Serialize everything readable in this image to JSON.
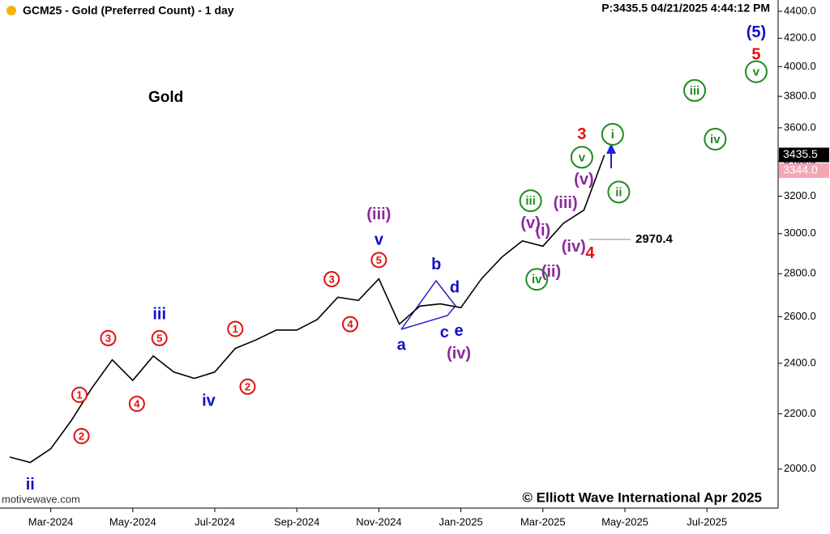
{
  "chart_data": {
    "type": "line",
    "title": "GCM25 - Gold (Preferred Count) - 1 day",
    "info": "P:3435.5  04/21/2025 4:44:12 PM",
    "subtitle": "Gold",
    "source": "motivewave.com",
    "copyright": "© Elliott Wave International Apr 2025",
    "log_scale": true,
    "grid": false,
    "categories": [
      null,
      null,
      "Mar-2024",
      null,
      null,
      null,
      "May-2024",
      null,
      null,
      null,
      "Jul-2024",
      null,
      null,
      null,
      "Sep-2024",
      null,
      null,
      null,
      "Nov-2024",
      null,
      null,
      null,
      "Jan-2025",
      null,
      null,
      null,
      "Mar-2025",
      null,
      null,
      null,
      "May-2025",
      null,
      null,
      null,
      "Jul-2025",
      null,
      null,
      null
    ],
    "series": [
      {
        "color": "#000000",
        "values": [
          2042,
          2023,
          2071,
          2174,
          2299,
          2414,
          2330,
          2430,
          2364,
          2338,
          2364,
          2462,
          2498,
          2541,
          2541,
          2588,
          2689,
          2674,
          2775,
          2567,
          2648,
          2658,
          2641,
          2775,
          2881,
          2963,
          2936,
          3054,
          3124,
          3435.5,
          null,
          null,
          null,
          null,
          null,
          null,
          null,
          null
        ]
      }
    ],
    "ylim": [
      1870,
      4455
    ],
    "yticks": [
      {
        "value": 2000,
        "label": "2000.0"
      },
      {
        "value": 2200,
        "label": "2200.0"
      },
      {
        "value": 2400,
        "label": "2400.0"
      },
      {
        "value": 2600,
        "label": "2600.0"
      },
      {
        "value": 2800,
        "label": "2800.0"
      },
      {
        "value": 3000,
        "label": "3000.0"
      },
      {
        "value": 3200,
        "label": "3200.0"
      },
      {
        "value": 3400,
        "label": "3400.0"
      },
      {
        "value": 3600,
        "label": "3600.0"
      },
      {
        "value": 3800,
        "label": "3800.0"
      },
      {
        "value": 4000,
        "label": "4000.0"
      },
      {
        "value": 4200,
        "label": "4200.0"
      },
      {
        "value": 4400,
        "label": "4400.0"
      }
    ],
    "price_markers": [
      {
        "value": 3435.5,
        "label": "3435.5",
        "color": "#000000"
      },
      {
        "value": 3344,
        "label": "3344.0",
        "color": "#f4a6b4"
      }
    ],
    "low_marker": {
      "value": 2970.4,
      "label": "2970.4"
    },
    "annotations": [
      {
        "text": "ii",
        "x": 1.0,
        "y": 1945,
        "color": "#1010c8",
        "circled": false
      },
      {
        "text": "1",
        "x": 3.4,
        "y": 2273,
        "color": "#e01010",
        "circled": true
      },
      {
        "text": "2",
        "x": 3.5,
        "y": 2117,
        "color": "#e01010",
        "circled": true
      },
      {
        "text": "3",
        "x": 4.8,
        "y": 2506,
        "color": "#e01010",
        "circled": true
      },
      {
        "text": "4",
        "x": 6.2,
        "y": 2238,
        "color": "#e01010",
        "circled": true
      },
      {
        "text": "5",
        "x": 7.3,
        "y": 2506,
        "color": "#e01010",
        "circled": true
      },
      {
        "text": "iii",
        "x": 7.3,
        "y": 2608,
        "color": "#1010c8",
        "circled": false
      },
      {
        "text": "iv",
        "x": 9.7,
        "y": 2247,
        "color": "#1010c8",
        "circled": false
      },
      {
        "text": "1",
        "x": 11.0,
        "y": 2546,
        "color": "#e01010",
        "circled": true
      },
      {
        "text": "2",
        "x": 11.6,
        "y": 2305,
        "color": "#e01010",
        "circled": true
      },
      {
        "text": "3",
        "x": 15.7,
        "y": 2774,
        "color": "#e01010",
        "circled": true
      },
      {
        "text": "4",
        "x": 16.6,
        "y": 2567,
        "color": "#e01010",
        "circled": true
      },
      {
        "text": "5",
        "x": 18.0,
        "y": 2867,
        "color": "#e01010",
        "circled": true
      },
      {
        "text": "v",
        "x": 18.0,
        "y": 2964,
        "color": "#1010c8",
        "circled": false
      },
      {
        "text": "(iii)",
        "x": 18.0,
        "y": 3097,
        "color": "#8a2a9a",
        "circled": false
      },
      {
        "text": "a",
        "x": 19.1,
        "y": 2474,
        "color": "#1010c8",
        "circled": false
      },
      {
        "text": "b",
        "x": 20.8,
        "y": 2842,
        "color": "#1010c8",
        "circled": false
      },
      {
        "text": "c",
        "x": 21.2,
        "y": 2528,
        "color": "#1010c8",
        "circled": false
      },
      {
        "text": "d",
        "x": 21.7,
        "y": 2731,
        "color": "#1010c8",
        "circled": false
      },
      {
        "text": "e",
        "x": 21.9,
        "y": 2534,
        "color": "#1010c8",
        "circled": false
      },
      {
        "text": "(iv)",
        "x": 21.9,
        "y": 2437,
        "color": "#8a2a9a",
        "circled": false
      },
      {
        "text": "(v)",
        "x": 25.4,
        "y": 3050,
        "color": "#8a2a9a",
        "circled": false
      },
      {
        "text": "iii",
        "x": 25.4,
        "y": 3175,
        "color": "#1f8a1f",
        "circled": true
      },
      {
        "text": "iv",
        "x": 25.7,
        "y": 2773,
        "color": "#1f8a1f",
        "circled": true
      },
      {
        "text": "(ii)",
        "x": 26.4,
        "y": 2806,
        "color": "#8a2a9a",
        "circled": false
      },
      {
        "text": "(i)",
        "x": 26.0,
        "y": 3013,
        "color": "#8a2a9a",
        "circled": false
      },
      {
        "text": "(iii)",
        "x": 27.1,
        "y": 3160,
        "color": "#8a2a9a",
        "circled": false
      },
      {
        "text": "(iv)",
        "x": 27.5,
        "y": 2929,
        "color": "#8a2a9a",
        "circled": false
      },
      {
        "text": "(v)",
        "x": 28.0,
        "y": 3290,
        "color": "#8a2a9a",
        "circled": false
      },
      {
        "text": "v",
        "x": 27.9,
        "y": 3422,
        "color": "#1f8a1f",
        "circled": true
      },
      {
        "text": "3",
        "x": 27.9,
        "y": 3555,
        "color": "#e01010",
        "circled": false
      },
      {
        "text": "4",
        "x": 28.3,
        "y": 2898,
        "color": "#e01010",
        "circled": false
      },
      {
        "text": "i",
        "x": 29.4,
        "y": 3560,
        "color": "#1f8a1f",
        "circled": true
      },
      {
        "text": "ii",
        "x": 29.7,
        "y": 3223,
        "color": "#1f8a1f",
        "circled": true
      },
      {
        "text": "iii",
        "x": 33.4,
        "y": 3839,
        "color": "#1f8a1f",
        "circled": true
      },
      {
        "text": "iv",
        "x": 34.4,
        "y": 3530,
        "color": "#1f8a1f",
        "circled": true
      },
      {
        "text": "5",
        "x": 36.4,
        "y": 4080,
        "color": "#e01010",
        "circled": false
      },
      {
        "text": "v",
        "x": 36.4,
        "y": 3965,
        "color": "#1f8a1f",
        "circled": true
      },
      {
        "text": "(5)",
        "x": 36.4,
        "y": 4238,
        "color": "#1010c8",
        "circled": false
      }
    ]
  }
}
